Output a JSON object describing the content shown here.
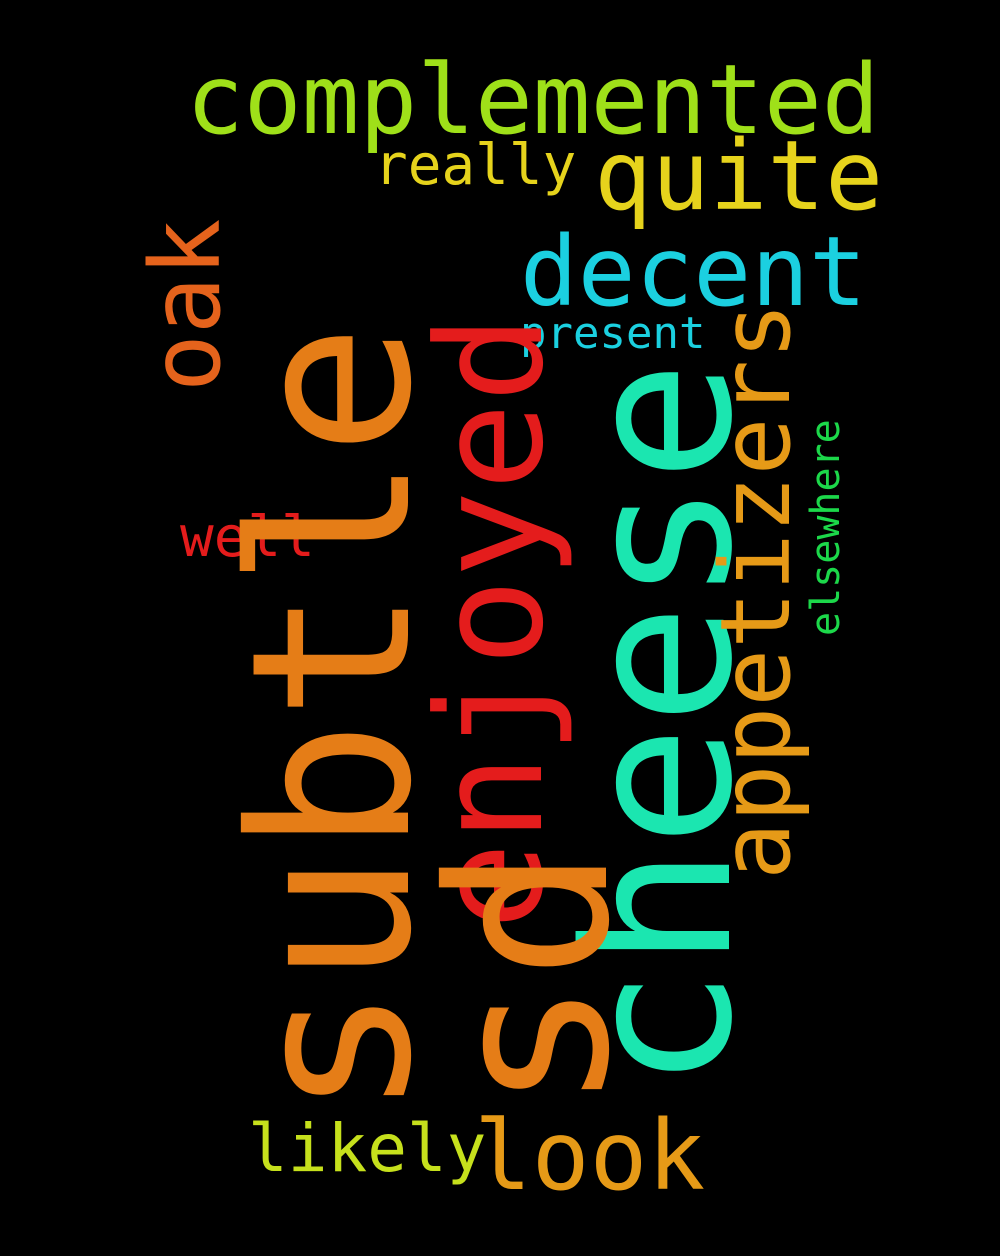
{
  "words": {
    "subtle": "subtle",
    "sd": "sd",
    "enjoyed": "enjoyed",
    "cheese": "cheese",
    "complemented": "complemented",
    "quite": "quite",
    "really": "really",
    "decent": "decent",
    "present": "present",
    "appetizers": "appetizers",
    "elsewhere": "elsewhere",
    "oak": "oak",
    "well": "well",
    "likely": "likely",
    "look": "look"
  },
  "colors": {
    "background": "#000000",
    "orange": "#e57d17",
    "red": "#e41c1c",
    "teal": "#1be6b0",
    "lime": "#9fe019",
    "yellow": "#e6d31c",
    "cyan": "#1bd0e0",
    "amber": "#e69a17",
    "green": "#1cd84a"
  }
}
